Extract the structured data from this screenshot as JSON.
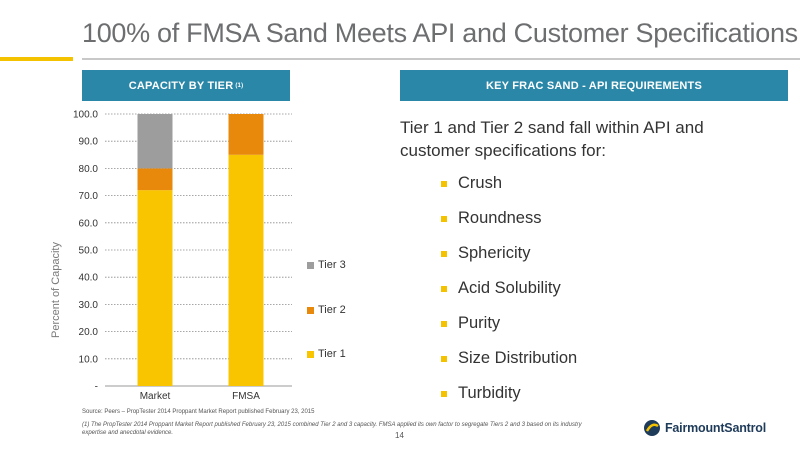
{
  "title": "100% of FMSA Sand Meets API and Customer Specifications",
  "left_header": {
    "label": "CAPACITY BY TIER",
    "sup": "(1)"
  },
  "right_header": {
    "label": "KEY  FRAC SAND - API REQUIREMENTS"
  },
  "intro_text": "Tier 1 and Tier 2 sand fall within API and customer specifications for:",
  "bullets": [
    "Crush",
    "Roundness",
    "Sphericity",
    "Acid Solubility",
    "Purity",
    "Size Distribution",
    "Turbidity"
  ],
  "source": "Source: Peers – PropTester 2014 Proppant Market Report published February 23, 2015",
  "footnote": "(1) The PropTester 2014 Proppant Market Report published February 23, 2015 combined Tier 2 and 3 capacity. FMSA applied its own factor to segregate Tiers 2 and 3 based on its industry expertise and anecdotal evidence.",
  "page_number": "14",
  "logo": {
    "text": "FairmountSantrol",
    "brand_color": "#1f3b5a",
    "accent_color": "#f5c200"
  },
  "colors": {
    "header_bg": "#2a87a8",
    "accent": "#f5c200",
    "tier1": "#f9c400",
    "tier2": "#e8890c",
    "tier3": "#9d9d9d"
  },
  "chart_data": {
    "type": "bar",
    "stacked": true,
    "categories": [
      "Market",
      "FMSA"
    ],
    "series": [
      {
        "name": "Tier 1",
        "values": [
          72,
          85
        ],
        "color": "#f9c400"
      },
      {
        "name": "Tier 2",
        "values": [
          8,
          15
        ],
        "color": "#e8890c"
      },
      {
        "name": "Tier 3",
        "values": [
          20,
          0
        ],
        "color": "#9d9d9d"
      }
    ],
    "ylabel": "Percent of Capacity",
    "ylim": [
      0,
      100
    ],
    "yticks": [
      "-",
      "10.0",
      "20.0",
      "30.0",
      "40.0",
      "50.0",
      "60.0",
      "70.0",
      "80.0",
      "90.0",
      "100.0"
    ],
    "grid": true,
    "legend_placement": "right"
  }
}
